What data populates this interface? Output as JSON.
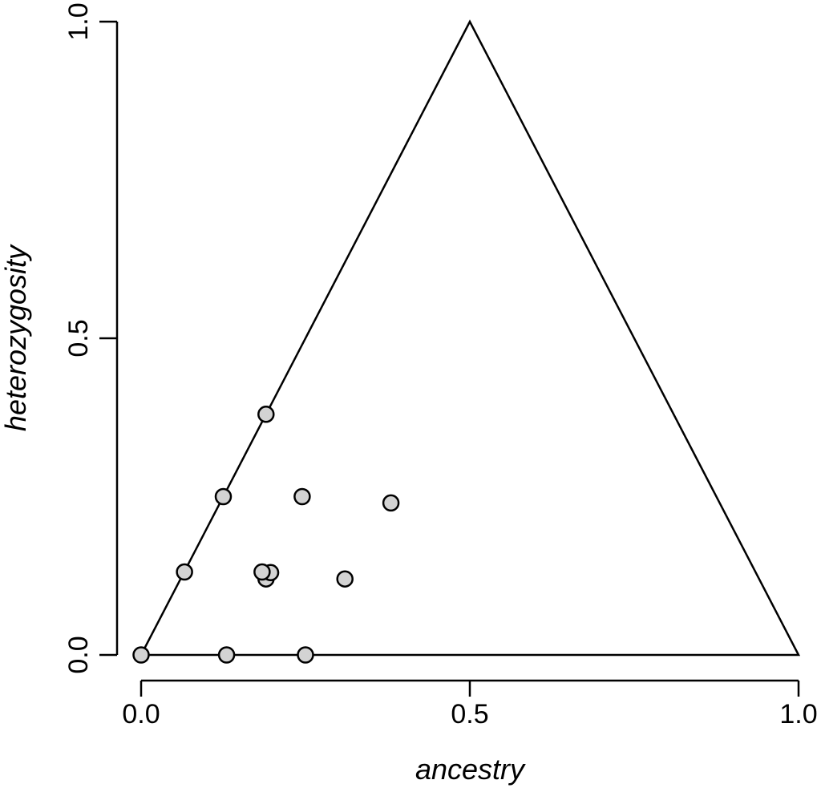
{
  "chart_data": {
    "type": "scatter",
    "title": "",
    "xlabel": "ancestry",
    "ylabel": "heterozygosity",
    "xlim": [
      0,
      1
    ],
    "ylim": [
      0,
      1
    ],
    "x_ticks": [
      "0.0",
      "0.5",
      "1.0"
    ],
    "y_ticks": [
      "0.0",
      "0.5",
      "1.0"
    ],
    "boundary_triangle": [
      [
        0,
        0
      ],
      [
        0.5,
        1
      ],
      [
        1,
        0
      ]
    ],
    "grid": false,
    "legend": "none",
    "colors": {
      "point_fill": "#d3d3d3",
      "point_stroke": "#000000",
      "line": "#000000"
    },
    "series": [
      {
        "values": [
          {
            "x": 0.0,
            "y": 0.0
          },
          {
            "x": 0.13,
            "y": 0.0
          },
          {
            "x": 0.25,
            "y": 0.0
          },
          {
            "x": 0.066,
            "y": 0.131
          },
          {
            "x": 0.125,
            "y": 0.25
          },
          {
            "x": 0.19,
            "y": 0.38
          },
          {
            "x": 0.245,
            "y": 0.25
          },
          {
            "x": 0.38,
            "y": 0.24
          },
          {
            "x": 0.19,
            "y": 0.12
          },
          {
            "x": 0.197,
            "y": 0.13
          },
          {
            "x": 0.184,
            "y": 0.131
          },
          {
            "x": 0.31,
            "y": 0.12
          }
        ]
      }
    ]
  }
}
